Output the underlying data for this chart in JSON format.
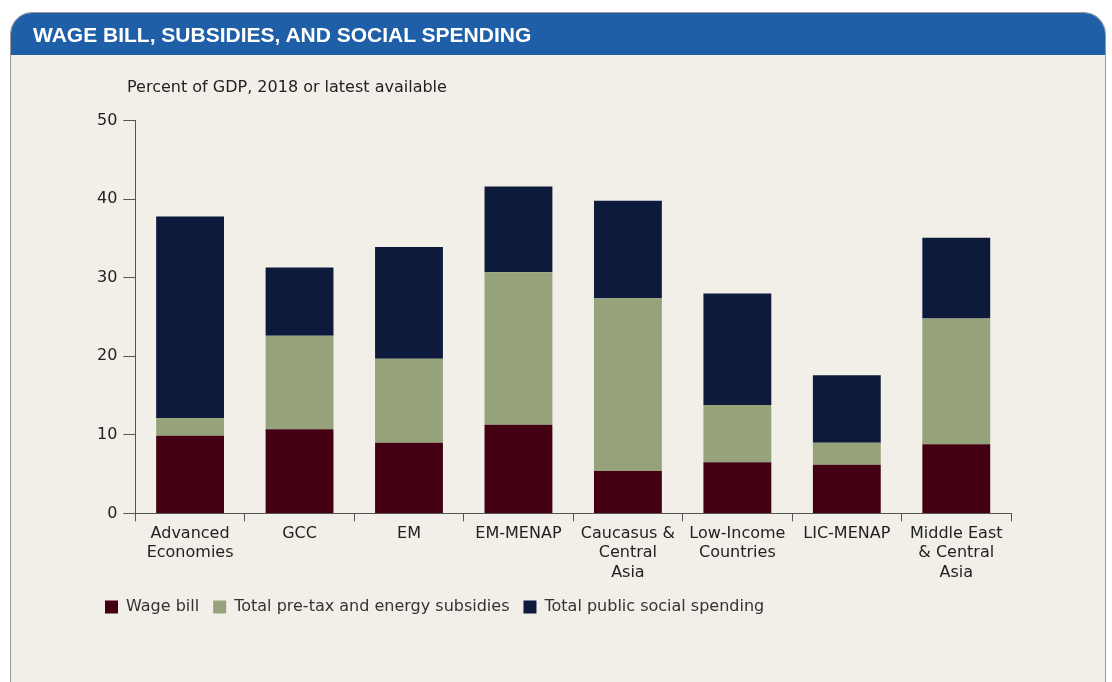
{
  "chart_data": {
    "type": "bar",
    "title": "WAGE BILL, SUBSIDIES, AND SOCIAL SPENDING",
    "ylabel": "Percent of GDP, 2018 or latest available",
    "categories": [
      "Advanced Economies",
      "GCC",
      "EM",
      "EM-MENAP",
      "Caucasus & Central Asia",
      "Low-Income Countries",
      "LIC-MENAP",
      "Middle East & Central Asia"
    ],
    "stacked": true,
    "ylim": [
      0,
      50
    ],
    "yticks": [
      0,
      10,
      20,
      30,
      40,
      50
    ],
    "grid": false,
    "legend": "bottom",
    "series": [
      {
        "name": "Wage bill",
        "color": "#420012",
        "values": [
          9.9,
          10.7,
          9.0,
          11.3,
          5.4,
          6.5,
          6.2,
          8.8
        ]
      },
      {
        "name": "Total pre-tax and energy subsidies",
        "color": "#95a27a",
        "values": [
          2.2,
          11.9,
          10.7,
          19.4,
          22.0,
          7.3,
          2.8,
          16.0
        ]
      },
      {
        "name": "Total public social spending",
        "color": "#0d1a3c",
        "values": [
          25.7,
          8.7,
          14.2,
          10.9,
          12.4,
          14.2,
          8.6,
          10.3
        ]
      }
    ]
  }
}
